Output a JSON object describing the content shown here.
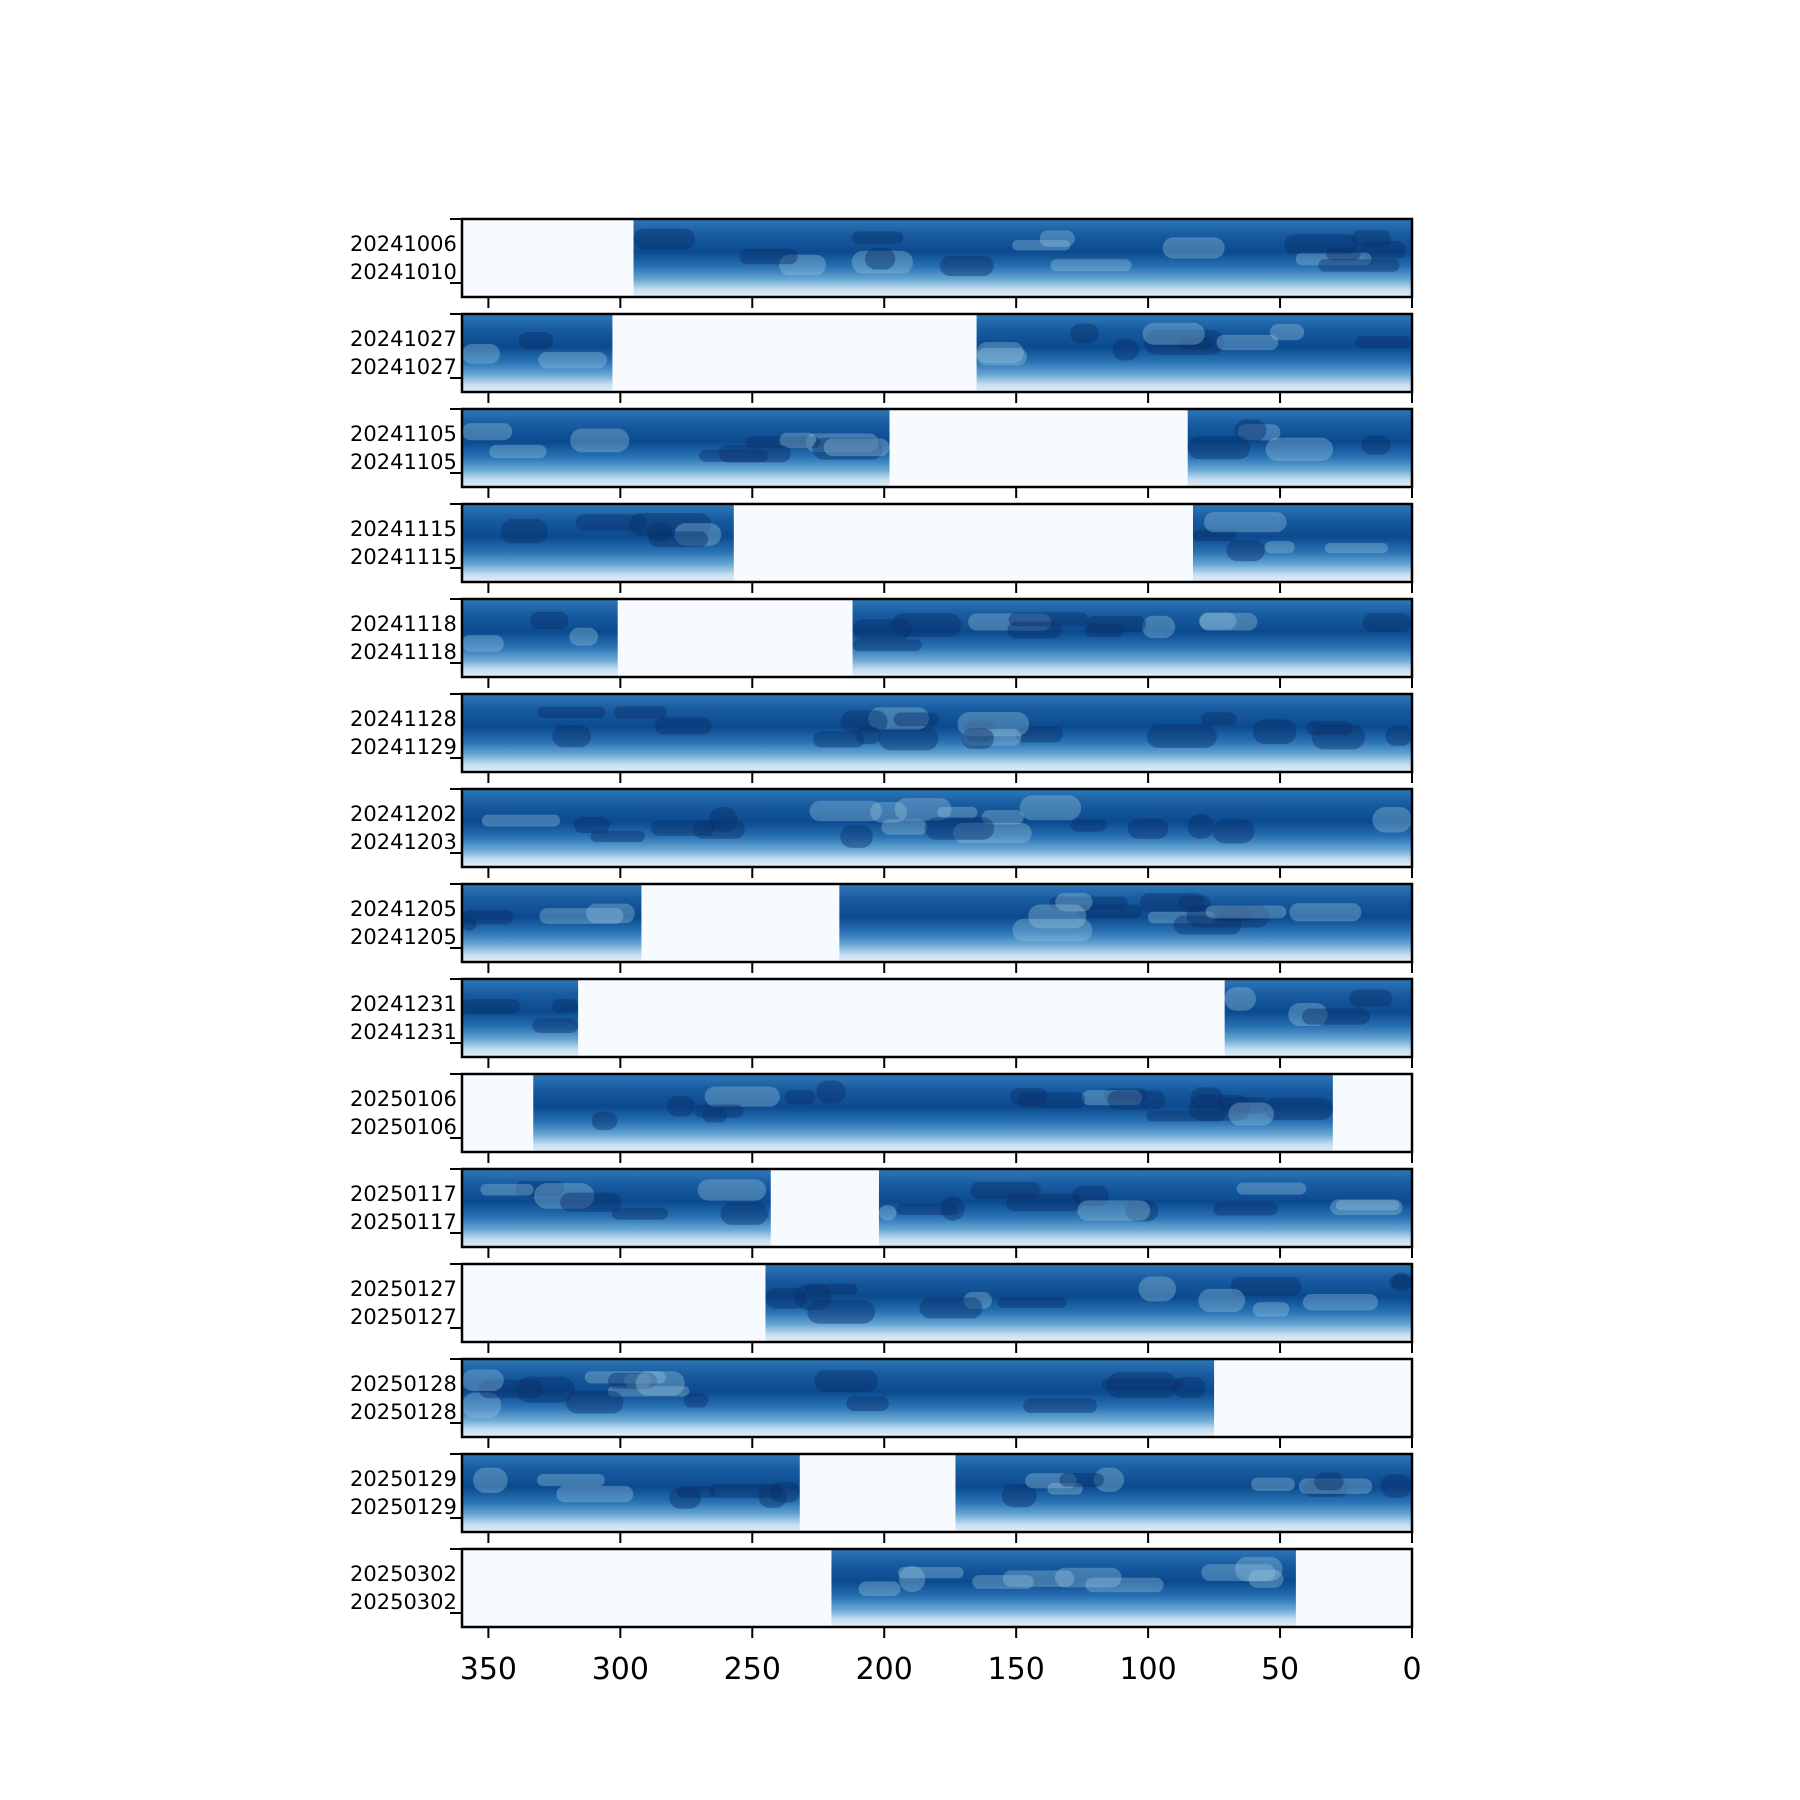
{
  "chart_data": {
    "type": "heatmap",
    "title": "",
    "xlabel": "",
    "ylabel": "",
    "xlim": [
      360,
      0
    ],
    "x_ticks": [
      350,
      300,
      250,
      200,
      150,
      100,
      50,
      0
    ],
    "x_tick_labels": [
      "350",
      "300",
      "250",
      "200",
      "150",
      "100",
      "50",
      "0"
    ],
    "colormap": "Blues",
    "colors": {
      "light": "#f7fbff",
      "mid": "#6baed6",
      "dark": "#08306b",
      "frame": "#000000"
    },
    "panels": [
      {
        "labels": [
          "20241006",
          "20241010"
        ],
        "gaps": [
          [
            360,
            295
          ]
        ]
      },
      {
        "labels": [
          "20241027",
          "20241027"
        ],
        "gaps": [
          [
            303,
            165
          ]
        ]
      },
      {
        "labels": [
          "20241105",
          "20241105"
        ],
        "gaps": [
          [
            198,
            85
          ]
        ]
      },
      {
        "labels": [
          "20241115",
          "20241115"
        ],
        "gaps": [
          [
            257,
            83
          ]
        ]
      },
      {
        "labels": [
          "20241118",
          "20241118"
        ],
        "gaps": [
          [
            301,
            212
          ]
        ]
      },
      {
        "labels": [
          "20241128",
          "20241129"
        ],
        "gaps": []
      },
      {
        "labels": [
          "20241202",
          "20241203"
        ],
        "gaps": []
      },
      {
        "labels": [
          "20241205",
          "20241205"
        ],
        "gaps": [
          [
            292,
            217
          ]
        ]
      },
      {
        "labels": [
          "20241231",
          "20241231"
        ],
        "gaps": [
          [
            316,
            71
          ]
        ]
      },
      {
        "labels": [
          "20250106",
          "20250106"
        ],
        "gaps": [
          [
            360,
            333
          ],
          [
            30,
            0
          ]
        ]
      },
      {
        "labels": [
          "20250117",
          "20250117"
        ],
        "gaps": [
          [
            243,
            202
          ]
        ]
      },
      {
        "labels": [
          "20250127",
          "20250127"
        ],
        "gaps": [
          [
            360,
            245
          ]
        ]
      },
      {
        "labels": [
          "20250128",
          "20250128"
        ],
        "gaps": [
          [
            75,
            0
          ]
        ]
      },
      {
        "labels": [
          "20250129",
          "20250129"
        ],
        "gaps": [
          [
            232,
            173
          ]
        ]
      },
      {
        "labels": [
          "20250302",
          "20250302"
        ],
        "gaps": [
          [
            360,
            220
          ],
          [
            44,
            0
          ]
        ]
      }
    ]
  }
}
